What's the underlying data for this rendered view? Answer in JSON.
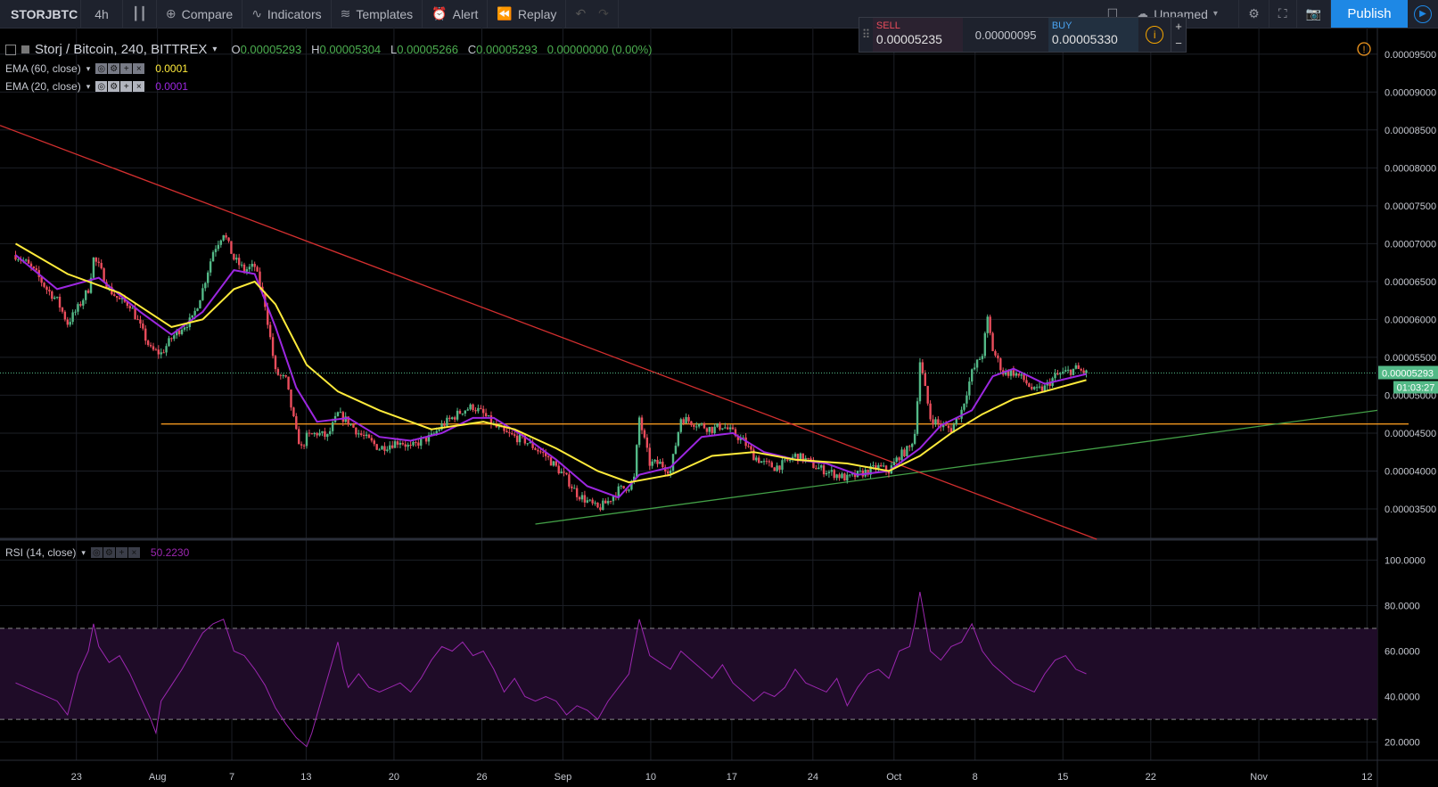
{
  "toolbar": {
    "symbol": "STORJBTC",
    "interval": "4h",
    "compare": "Compare",
    "indicators": "Indicators",
    "templates": "Templates",
    "alert": "Alert",
    "replay": "Replay",
    "layout_name": "Unnamed",
    "publish": "Publish"
  },
  "trade_panel": {
    "sell_label": "SELL",
    "sell_price": "0.00005235",
    "spread": "0.00000095",
    "buy_label": "BUY",
    "buy_price": "0.00005330"
  },
  "legend": {
    "title": "Storj / Bitcoin, 240, BITTREX",
    "o_label": "O",
    "o": "0.00005293",
    "h_label": "H",
    "h": "0.00005304",
    "l_label": "L",
    "l": "0.00005266",
    "c_label": "C",
    "c": "0.00005293",
    "change": "0.00000000 (0.00%)",
    "ema60_label": "EMA (60, close)",
    "ema60_value": "0.0001",
    "ema20_label": "EMA (20, close)",
    "ema20_value": "0.0001",
    "rsi_label": "RSI (14, close)",
    "rsi_value": "50.2230"
  },
  "colors": {
    "bull": "#53b987",
    "bear": "#eb4d5c",
    "ema60": "#ffeb3b",
    "ema20": "#9c27e0",
    "rsi": "#9c27b0",
    "downtrend": "#d32f2f",
    "uptrend": "#43a047",
    "support": "#f0961e"
  },
  "chart_data": [
    {
      "type": "candlestick",
      "price_axis_ticks": [
        "0.00009500",
        "0.00009000",
        "0.00008500",
        "0.00008000",
        "0.00007500",
        "0.00007000",
        "0.00006500",
        "0.00006000",
        "0.00005500",
        "0.00005000",
        "0.00004500",
        "0.00004000",
        "0.00003500"
      ],
      "ylim": [
        3.1e-05,
        9.85e-05
      ],
      "last_price": "0.00005293",
      "countdown": "01:03:27",
      "x_ticks": [
        "23",
        "Aug",
        "7",
        "13",
        "20",
        "26",
        "Sep",
        "10",
        "17",
        "24",
        "Oct",
        "8",
        "15",
        "22",
        "Nov",
        "12"
      ],
      "close_path": [
        [
          0,
          6.85e-05
        ],
        [
          2,
          6.75e-05
        ],
        [
          4,
          6.6e-05
        ],
        [
          6,
          6.4e-05
        ],
        [
          8,
          6.25e-05
        ],
        [
          10,
          5.95e-05
        ],
        [
          12,
          6.15e-05
        ],
        [
          14,
          6.4e-05
        ],
        [
          15,
          6.8e-05
        ],
        [
          16,
          6.7e-05
        ],
        [
          18,
          6.4e-05
        ],
        [
          20,
          6.25e-05
        ],
        [
          22,
          6.2e-05
        ],
        [
          24,
          5.9e-05
        ],
        [
          26,
          5.6e-05
        ],
        [
          28,
          5.55e-05
        ],
        [
          30,
          5.75e-05
        ],
        [
          32,
          5.9e-05
        ],
        [
          34,
          6e-05
        ],
        [
          36,
          6.4e-05
        ],
        [
          38,
          6.9e-05
        ],
        [
          40,
          7.15e-05
        ],
        [
          42,
          6.8e-05
        ],
        [
          44,
          6.65e-05
        ],
        [
          46,
          6.7e-05
        ],
        [
          48,
          6.2e-05
        ],
        [
          50,
          5.3e-05
        ],
        [
          52,
          5.2e-05
        ],
        [
          54,
          4.5e-05
        ],
        [
          55,
          4.3e-05
        ],
        [
          56,
          4.45e-05
        ],
        [
          58,
          4.5e-05
        ],
        [
          60,
          4.45e-05
        ],
        [
          62,
          4.75e-05
        ],
        [
          64,
          4.65e-05
        ],
        [
          66,
          4.5e-05
        ],
        [
          68,
          4.4e-05
        ],
        [
          70,
          4.3e-05
        ],
        [
          72,
          4.35e-05
        ],
        [
          74,
          4.4e-05
        ],
        [
          76,
          4.3e-05
        ],
        [
          78,
          4.4e-05
        ],
        [
          80,
          4.45e-05
        ],
        [
          82,
          4.6e-05
        ],
        [
          84,
          4.7e-05
        ],
        [
          86,
          4.8e-05
        ],
        [
          88,
          4.85e-05
        ],
        [
          90,
          4.75e-05
        ],
        [
          92,
          4.6e-05
        ],
        [
          94,
          4.5e-05
        ],
        [
          96,
          4.45e-05
        ],
        [
          98,
          4.4e-05
        ],
        [
          100,
          4.3e-05
        ],
        [
          102,
          4.2e-05
        ],
        [
          104,
          4.05e-05
        ],
        [
          106,
          3.9e-05
        ],
        [
          108,
          3.7e-05
        ],
        [
          110,
          3.6e-05
        ],
        [
          112,
          3.5e-05
        ],
        [
          114,
          3.6e-05
        ],
        [
          116,
          3.75e-05
        ],
        [
          118,
          3.8e-05
        ],
        [
          119,
          3.9e-05
        ],
        [
          120,
          4.7e-05
        ],
        [
          122,
          4.1e-05
        ],
        [
          124,
          4.1e-05
        ],
        [
          126,
          4e-05
        ],
        [
          128,
          4.7e-05
        ],
        [
          130,
          4.65e-05
        ],
        [
          132,
          4.6e-05
        ],
        [
          134,
          4.55e-05
        ],
        [
          136,
          4.6e-05
        ],
        [
          138,
          4.5e-05
        ],
        [
          140,
          4.4e-05
        ],
        [
          142,
          4.2e-05
        ],
        [
          144,
          4.1e-05
        ],
        [
          146,
          4.05e-05
        ],
        [
          148,
          4.1e-05
        ],
        [
          150,
          4.2e-05
        ],
        [
          152,
          4.15e-05
        ],
        [
          154,
          4.05e-05
        ],
        [
          156,
          4e-05
        ],
        [
          158,
          3.95e-05
        ],
        [
          160,
          3.9e-05
        ],
        [
          162,
          3.95e-05
        ],
        [
          164,
          4e-05
        ],
        [
          166,
          4.05e-05
        ],
        [
          168,
          4e-05
        ],
        [
          170,
          4.2e-05
        ],
        [
          172,
          4.3e-05
        ],
        [
          173,
          4.5e-05
        ],
        [
          174,
          5.45e-05
        ],
        [
          176,
          4.7e-05
        ],
        [
          178,
          4.6e-05
        ],
        [
          180,
          4.55e-05
        ],
        [
          182,
          4.8e-05
        ],
        [
          184,
          5.3e-05
        ],
        [
          186,
          5.55e-05
        ],
        [
          187,
          6e-05
        ],
        [
          188,
          5.6e-05
        ],
        [
          190,
          5.3e-05
        ],
        [
          192,
          5.3e-05
        ],
        [
          194,
          5.2e-05
        ],
        [
          196,
          5.05e-05
        ],
        [
          198,
          5.1e-05
        ],
        [
          200,
          5.25e-05
        ],
        [
          202,
          5.3e-05
        ],
        [
          204,
          5.35e-05
        ],
        [
          206,
          5.29e-05
        ]
      ],
      "ema60_path": [
        [
          0,
          7e-05
        ],
        [
          10,
          6.6e-05
        ],
        [
          20,
          6.35e-05
        ],
        [
          30,
          5.9e-05
        ],
        [
          36,
          6e-05
        ],
        [
          42,
          6.4e-05
        ],
        [
          46,
          6.5e-05
        ],
        [
          50,
          6.2e-05
        ],
        [
          56,
          5.4e-05
        ],
        [
          62,
          5.05e-05
        ],
        [
          70,
          4.8e-05
        ],
        [
          80,
          4.55e-05
        ],
        [
          90,
          4.65e-05
        ],
        [
          96,
          4.55e-05
        ],
        [
          104,
          4.3e-05
        ],
        [
          112,
          4e-05
        ],
        [
          118,
          3.85e-05
        ],
        [
          126,
          3.95e-05
        ],
        [
          134,
          4.2e-05
        ],
        [
          142,
          4.25e-05
        ],
        [
          150,
          4.15e-05
        ],
        [
          160,
          4.1e-05
        ],
        [
          168,
          4e-05
        ],
        [
          174,
          4.2e-05
        ],
        [
          180,
          4.5e-05
        ],
        [
          186,
          4.75e-05
        ],
        [
          192,
          4.95e-05
        ],
        [
          198,
          5.05e-05
        ],
        [
          206,
          5.2e-05
        ]
      ],
      "ema20_path": [
        [
          0,
          6.85e-05
        ],
        [
          8,
          6.4e-05
        ],
        [
          16,
          6.55e-05
        ],
        [
          24,
          6.1e-05
        ],
        [
          30,
          5.8e-05
        ],
        [
          36,
          6.1e-05
        ],
        [
          42,
          6.65e-05
        ],
        [
          46,
          6.6e-05
        ],
        [
          50,
          5.9e-05
        ],
        [
          54,
          5.1e-05
        ],
        [
          58,
          4.65e-05
        ],
        [
          64,
          4.7e-05
        ],
        [
          70,
          4.45e-05
        ],
        [
          76,
          4.4e-05
        ],
        [
          82,
          4.5e-05
        ],
        [
          88,
          4.7e-05
        ],
        [
          92,
          4.7e-05
        ],
        [
          98,
          4.45e-05
        ],
        [
          104,
          4.15e-05
        ],
        [
          110,
          3.8e-05
        ],
        [
          116,
          3.65e-05
        ],
        [
          120,
          3.95e-05
        ],
        [
          126,
          4.05e-05
        ],
        [
          132,
          4.45e-05
        ],
        [
          138,
          4.5e-05
        ],
        [
          144,
          4.25e-05
        ],
        [
          150,
          4.15e-05
        ],
        [
          156,
          4.1e-05
        ],
        [
          162,
          3.95e-05
        ],
        [
          168,
          4e-05
        ],
        [
          174,
          4.3e-05
        ],
        [
          178,
          4.6e-05
        ],
        [
          184,
          4.8e-05
        ],
        [
          188,
          5.25e-05
        ],
        [
          192,
          5.35e-05
        ],
        [
          198,
          5.15e-05
        ],
        [
          206,
          5.28e-05
        ]
      ],
      "trendlines": [
        {
          "name": "downtrend",
          "from": [
            -3,
            8.56e-05
          ],
          "to": [
            208,
            3.1e-05
          ]
        },
        {
          "name": "uptrend",
          "from": [
            100,
            3.3e-05
          ],
          "to": [
            262,
            4.8e-05
          ]
        },
        {
          "name": "support",
          "from": [
            28,
            4.62e-05
          ],
          "to": [
            268,
            4.62e-05
          ]
        }
      ],
      "x_range": [
        -3,
        262
      ]
    },
    {
      "type": "line",
      "name": "RSI",
      "y_ticks": [
        "100.0000",
        "80.0000",
        "60.0000",
        "40.0000",
        "20.0000"
      ],
      "ylim": [
        12,
        108
      ],
      "band": [
        30,
        70
      ],
      "values": [
        [
          0,
          46
        ],
        [
          4,
          42
        ],
        [
          8,
          38
        ],
        [
          10,
          32
        ],
        [
          12,
          50
        ],
        [
          14,
          60
        ],
        [
          15,
          72
        ],
        [
          16,
          62
        ],
        [
          18,
          55
        ],
        [
          20,
          58
        ],
        [
          22,
          50
        ],
        [
          24,
          40
        ],
        [
          26,
          30
        ],
        [
          27,
          24
        ],
        [
          28,
          38
        ],
        [
          30,
          45
        ],
        [
          32,
          52
        ],
        [
          34,
          60
        ],
        [
          36,
          68
        ],
        [
          38,
          72
        ],
        [
          40,
          74
        ],
        [
          42,
          60
        ],
        [
          44,
          58
        ],
        [
          46,
          52
        ],
        [
          48,
          45
        ],
        [
          50,
          35
        ],
        [
          52,
          28
        ],
        [
          54,
          22
        ],
        [
          56,
          18
        ],
        [
          57,
          24
        ],
        [
          58,
          32
        ],
        [
          60,
          48
        ],
        [
          62,
          64
        ],
        [
          63,
          52
        ],
        [
          64,
          44
        ],
        [
          66,
          50
        ],
        [
          68,
          44
        ],
        [
          70,
          42
        ],
        [
          72,
          44
        ],
        [
          74,
          46
        ],
        [
          76,
          42
        ],
        [
          78,
          48
        ],
        [
          80,
          56
        ],
        [
          82,
          62
        ],
        [
          84,
          60
        ],
        [
          86,
          64
        ],
        [
          88,
          58
        ],
        [
          90,
          60
        ],
        [
          92,
          52
        ],
        [
          94,
          42
        ],
        [
          96,
          48
        ],
        [
          98,
          40
        ],
        [
          100,
          38
        ],
        [
          102,
          40
        ],
        [
          104,
          38
        ],
        [
          106,
          32
        ],
        [
          108,
          36
        ],
        [
          110,
          34
        ],
        [
          112,
          30
        ],
        [
          114,
          38
        ],
        [
          116,
          44
        ],
        [
          118,
          50
        ],
        [
          120,
          74
        ],
        [
          122,
          58
        ],
        [
          124,
          55
        ],
        [
          126,
          52
        ],
        [
          128,
          60
        ],
        [
          130,
          56
        ],
        [
          132,
          52
        ],
        [
          134,
          48
        ],
        [
          136,
          54
        ],
        [
          138,
          46
        ],
        [
          140,
          42
        ],
        [
          142,
          38
        ],
        [
          144,
          42
        ],
        [
          146,
          40
        ],
        [
          148,
          44
        ],
        [
          150,
          52
        ],
        [
          152,
          46
        ],
        [
          154,
          44
        ],
        [
          156,
          42
        ],
        [
          158,
          48
        ],
        [
          160,
          36
        ],
        [
          162,
          44
        ],
        [
          164,
          50
        ],
        [
          166,
          52
        ],
        [
          168,
          48
        ],
        [
          170,
          60
        ],
        [
          172,
          62
        ],
        [
          173,
          72
        ],
        [
          174,
          86
        ],
        [
          176,
          60
        ],
        [
          178,
          56
        ],
        [
          180,
          62
        ],
        [
          182,
          64
        ],
        [
          184,
          72
        ],
        [
          186,
          60
        ],
        [
          188,
          54
        ],
        [
          190,
          50
        ],
        [
          192,
          46
        ],
        [
          194,
          44
        ],
        [
          196,
          42
        ],
        [
          198,
          50
        ],
        [
          200,
          56
        ],
        [
          202,
          58
        ],
        [
          204,
          52
        ],
        [
          206,
          50
        ]
      ]
    }
  ]
}
